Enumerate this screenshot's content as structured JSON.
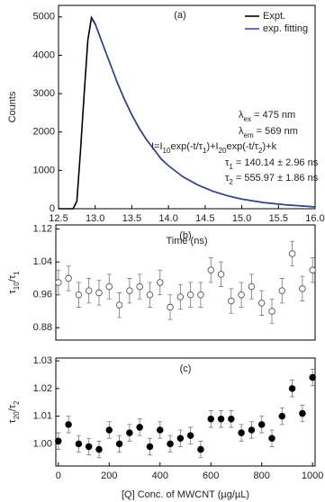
{
  "chart_data": [
    {
      "type": "line",
      "xlabel": "Time (ns)",
      "ylabel": "Counts",
      "xlim": [
        12.5,
        16.0
      ],
      "ylim": [
        0,
        5300
      ],
      "xticks": [
        12.5,
        {
          "value": 13,
          "label": "13.0"
        },
        13.5,
        {
          "value": 14,
          "label": "14.0"
        },
        14.5,
        {
          "value": 15,
          "label": "15.0"
        },
        15.5,
        {
          "value": 16,
          "label": "16.0"
        }
      ],
      "yticks": [
        0,
        1000,
        2000,
        3000,
        4000,
        5000
      ],
      "series": [
        {
          "name": "Expt.",
          "color": "#000000",
          "x": [
            12.5,
            12.6,
            12.7,
            12.75,
            12.8,
            12.85,
            12.9,
            12.95,
            13.0,
            13.1,
            13.2,
            13.3,
            13.4,
            13.5,
            13.6,
            13.7,
            13.8,
            13.9,
            14.0,
            14.2,
            14.4,
            14.6,
            14.8,
            15.0,
            15.3,
            15.6,
            16.0
          ],
          "values": [
            0,
            0,
            0,
            200,
            1500,
            3000,
            4400,
            4980,
            4820,
            4300,
            3800,
            3300,
            2850,
            2450,
            2100,
            1800,
            1550,
            1300,
            1120,
            830,
            620,
            460,
            340,
            250,
            160,
            100,
            50
          ]
        },
        {
          "name": "exp. fitting",
          "color": "#3a4fb0",
          "x": [
            12.95,
            13.0,
            13.1,
            13.2,
            13.3,
            13.4,
            13.5,
            13.6,
            13.7,
            13.8,
            13.9,
            14.0,
            14.2,
            14.4,
            14.6,
            14.8,
            15.0,
            15.3,
            15.6,
            16.0
          ],
          "values": [
            4950,
            4800,
            4290,
            3790,
            3310,
            2860,
            2460,
            2110,
            1810,
            1550,
            1310,
            1120,
            830,
            620,
            460,
            340,
            250,
            160,
            100,
            50
          ]
        }
      ],
      "annotations": [
        "(a)",
        [
          {
            "text": "λ"
          },
          {
            "text": "ex",
            "sub": true
          },
          {
            "text": " =  475 nm"
          }
        ],
        [
          {
            "text": "λ"
          },
          {
            "text": "em",
            "sub": true
          },
          {
            "text": " =  569 nm"
          }
        ],
        [
          {
            "text": "I=I"
          },
          {
            "text": "10",
            "sub": true
          },
          {
            "text": "exp(-t/τ"
          },
          {
            "text": "1",
            "sub": true
          },
          {
            "text": ")+I"
          },
          {
            "text": "20",
            "sub": true
          },
          {
            "text": "exp(-t/τ"
          },
          {
            "text": "2",
            "sub": true
          },
          {
            "text": ")+k"
          }
        ],
        [
          {
            "text": "τ"
          },
          {
            "text": "1",
            "sub": true
          },
          {
            "text": " = 140.14 ± 2.96 ns"
          }
        ],
        [
          {
            "text": "τ"
          },
          {
            "text": "2",
            "sub": true
          },
          {
            "text": " = 555.97 ± 1.86 ns"
          }
        ]
      ]
    },
    {
      "type": "scatter",
      "ylabel": [
        {
          "text": "τ"
        },
        {
          "text": "10",
          "sub": true
        },
        {
          "text": "/τ"
        },
        {
          "text": "1",
          "sub": true
        }
      ],
      "xlim": [
        -10,
        1010
      ],
      "ylim": [
        0.85,
        1.13
      ],
      "yticks": [
        0.88,
        0.96,
        1.04,
        1.12
      ],
      "color": "#555555",
      "marker_fill": "#ffffff",
      "x": [
        0,
        40,
        80,
        120,
        160,
        200,
        240,
        280,
        320,
        360,
        400,
        440,
        480,
        520,
        560,
        600,
        640,
        680,
        720,
        760,
        800,
        840,
        880,
        920,
        960,
        1000
      ],
      "values": [
        0.99,
        1.0,
        0.96,
        0.97,
        0.965,
        0.98,
        0.935,
        0.97,
        0.98,
        0.96,
        0.99,
        0.93,
        0.955,
        0.96,
        0.96,
        1.02,
        1.01,
        0.945,
        0.96,
        0.98,
        0.94,
        0.92,
        0.97,
        1.06,
        0.975,
        1.02
      ],
      "errors": [
        0.03,
        0.03,
        0.03,
        0.03,
        0.03,
        0.03,
        0.03,
        0.03,
        0.03,
        0.03,
        0.03,
        0.03,
        0.03,
        0.03,
        0.03,
        0.03,
        0.03,
        0.03,
        0.03,
        0.03,
        0.03,
        0.03,
        0.03,
        0.03,
        0.03,
        0.03
      ],
      "annotations": [
        "(b)"
      ]
    },
    {
      "type": "scatter",
      "xlabel": "[Q] Conc. of MWCNT (µg/µL)",
      "ylabel": [
        {
          "text": "τ"
        },
        {
          "text": "20",
          "sub": true
        },
        {
          "text": "/τ"
        },
        {
          "text": "2",
          "sub": true
        }
      ],
      "xlim": [
        -10,
        1010
      ],
      "ylim": [
        0.992,
        1.031
      ],
      "xticks": [
        0,
        200,
        400,
        600,
        800,
        1000
      ],
      "yticks": [
        {
          "value": 1,
          "label": "1.00"
        },
        1.01,
        1.02,
        1.03
      ],
      "color": "#000000",
      "marker_fill": "#000000",
      "x": [
        0,
        40,
        80,
        120,
        160,
        200,
        240,
        280,
        320,
        360,
        400,
        440,
        480,
        520,
        560,
        600,
        640,
        680,
        720,
        760,
        800,
        840,
        880,
        920,
        960,
        1000
      ],
      "values": [
        1.001,
        1.007,
        1.0,
        0.999,
        0.998,
        1.005,
        1.0,
        1.004,
        1.006,
        0.999,
        1.005,
        1.0,
        1.002,
        1.003,
        0.998,
        1.009,
        1.009,
        1.009,
        1.004,
        1.005,
        1.007,
        1.002,
        1.01,
        1.02,
        1.011,
        1.024
      ],
      "errors": [
        0.003,
        0.003,
        0.003,
        0.003,
        0.003,
        0.003,
        0.003,
        0.003,
        0.003,
        0.003,
        0.003,
        0.003,
        0.003,
        0.003,
        0.003,
        0.003,
        0.003,
        0.003,
        0.003,
        0.003,
        0.003,
        0.003,
        0.003,
        0.003,
        0.003,
        0.003
      ],
      "annotations": [
        "(c)"
      ]
    }
  ]
}
